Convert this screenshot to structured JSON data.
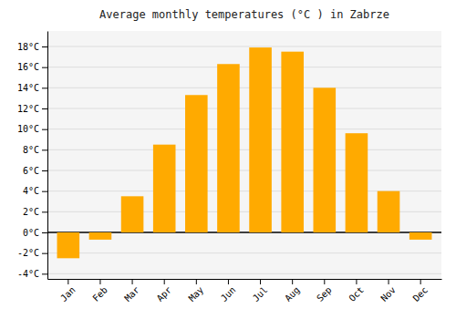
{
  "chart_data": {
    "type": "bar",
    "title": "Average monthly temperatures (°C ) in Zabrze",
    "categories": [
      "Jan",
      "Feb",
      "Mar",
      "Apr",
      "May",
      "Jun",
      "Jul",
      "Aug",
      "Sep",
      "Oct",
      "Nov",
      "Dec"
    ],
    "values": [
      -2.5,
      -0.7,
      3.5,
      8.5,
      13.3,
      16.3,
      17.9,
      17.5,
      14.0,
      9.6,
      4.0,
      -0.7
    ],
    "color": "#FFAA00",
    "ylim": [
      -4.5,
      19.5
    ],
    "yticks": [
      {
        "value": -4,
        "label": "-4°C"
      },
      {
        "value": -2,
        "label": "-2°C"
      },
      {
        "value": 0,
        "label": "0°C"
      },
      {
        "value": 2,
        "label": "2°C"
      },
      {
        "value": 4,
        "label": "4°C"
      },
      {
        "value": 6,
        "label": "6°C"
      },
      {
        "value": 8,
        "label": "8°C"
      },
      {
        "value": 10,
        "label": "10°C"
      },
      {
        "value": 12,
        "label": "12°C"
      },
      {
        "value": 14,
        "label": "14°C"
      },
      {
        "value": 16,
        "label": "16°C"
      },
      {
        "value": 18,
        "label": "18°C"
      }
    ],
    "grid": true
  }
}
